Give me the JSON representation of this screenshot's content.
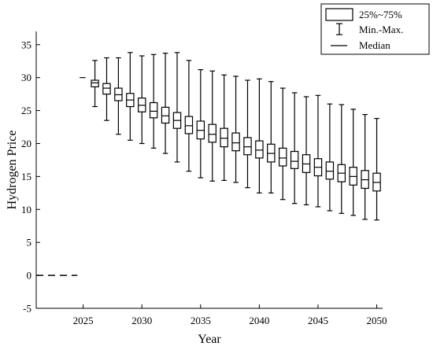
{
  "chart_data": {
    "type": "box",
    "xlabel": "Year",
    "ylabel": "Hydrogen Price",
    "xlim": [
      2021,
      2050.5
    ],
    "ylim": [
      -5,
      37
    ],
    "x_ticks": [
      2025,
      2030,
      2035,
      2040,
      2045,
      2050
    ],
    "y_ticks": [
      -5,
      0,
      5,
      10,
      15,
      20,
      25,
      30,
      35
    ],
    "legend": {
      "position": "top-right",
      "entries": [
        {
          "symbol": "box",
          "label": "25%~75%"
        },
        {
          "symbol": "whisker",
          "label": "Min.-Max."
        },
        {
          "symbol": "line",
          "label": "Median"
        }
      ]
    },
    "historical_lines": [
      {
        "x": [
          2021,
          2024.5
        ],
        "y": [
          0,
          0
        ],
        "style": "dashed"
      },
      {
        "x": [
          2024.7,
          2025.2
        ],
        "y": [
          30,
          30
        ],
        "style": "solid"
      }
    ],
    "boxes": [
      {
        "x": 2026,
        "min": 25.6,
        "q1": 28.6,
        "median": 29.2,
        "q3": 29.6,
        "max": 32.6
      },
      {
        "x": 2027,
        "min": 23.5,
        "q1": 27.5,
        "median": 28.4,
        "q3": 29.1,
        "max": 33.0
      },
      {
        "x": 2028,
        "min": 21.4,
        "q1": 26.5,
        "median": 27.4,
        "q3": 28.4,
        "max": 33.0
      },
      {
        "x": 2029,
        "min": 20.5,
        "q1": 25.6,
        "median": 26.6,
        "q3": 27.6,
        "max": 33.8
      },
      {
        "x": 2030,
        "min": 20.0,
        "q1": 24.8,
        "median": 25.8,
        "q3": 26.9,
        "max": 33.3
      },
      {
        "x": 2031,
        "min": 19.3,
        "q1": 23.9,
        "median": 24.9,
        "q3": 26.2,
        "max": 33.5
      },
      {
        "x": 2032,
        "min": 18.5,
        "q1": 23.1,
        "median": 24.2,
        "q3": 25.5,
        "max": 33.7
      },
      {
        "x": 2033,
        "min": 17.2,
        "q1": 22.3,
        "median": 23.5,
        "q3": 24.7,
        "max": 33.8
      },
      {
        "x": 2034,
        "min": 15.8,
        "q1": 21.5,
        "median": 22.7,
        "q3": 24.1,
        "max": 32.6
      },
      {
        "x": 2035,
        "min": 14.8,
        "q1": 20.7,
        "median": 22.0,
        "q3": 23.4,
        "max": 31.2
      },
      {
        "x": 2036,
        "min": 14.3,
        "q1": 20.2,
        "median": 21.4,
        "q3": 22.9,
        "max": 31.0
      },
      {
        "x": 2037,
        "min": 14.4,
        "q1": 19.5,
        "median": 20.8,
        "q3": 22.3,
        "max": 30.4
      },
      {
        "x": 2038,
        "min": 14.1,
        "q1": 18.9,
        "median": 20.1,
        "q3": 21.6,
        "max": 30.2
      },
      {
        "x": 2039,
        "min": 13.3,
        "q1": 18.3,
        "median": 19.5,
        "q3": 20.9,
        "max": 29.6
      },
      {
        "x": 2040,
        "min": 12.5,
        "q1": 17.8,
        "median": 19.0,
        "q3": 20.4,
        "max": 29.8
      },
      {
        "x": 2041,
        "min": 12.5,
        "q1": 17.2,
        "median": 18.5,
        "q3": 19.9,
        "max": 29.4
      },
      {
        "x": 2042,
        "min": 11.5,
        "q1": 16.6,
        "median": 17.8,
        "q3": 19.3,
        "max": 28.4
      },
      {
        "x": 2043,
        "min": 10.9,
        "q1": 16.2,
        "median": 17.3,
        "q3": 18.8,
        "max": 27.7
      },
      {
        "x": 2044,
        "min": 10.7,
        "q1": 15.6,
        "median": 16.9,
        "q3": 18.3,
        "max": 27.1
      },
      {
        "x": 2045,
        "min": 10.4,
        "q1": 15.1,
        "median": 16.4,
        "q3": 17.7,
        "max": 27.3
      },
      {
        "x": 2046,
        "min": 9.8,
        "q1": 14.6,
        "median": 15.8,
        "q3": 17.2,
        "max": 26.0
      },
      {
        "x": 2047,
        "min": 9.4,
        "q1": 14.2,
        "median": 15.5,
        "q3": 16.8,
        "max": 25.9
      },
      {
        "x": 2048,
        "min": 9.1,
        "q1": 13.7,
        "median": 15.0,
        "q3": 16.4,
        "max": 25.2
      },
      {
        "x": 2049,
        "min": 8.5,
        "q1": 13.2,
        "median": 14.5,
        "q3": 15.9,
        "max": 24.4
      },
      {
        "x": 2050,
        "min": 8.4,
        "q1": 12.8,
        "median": 14.1,
        "q3": 15.5,
        "max": 23.8
      }
    ]
  }
}
